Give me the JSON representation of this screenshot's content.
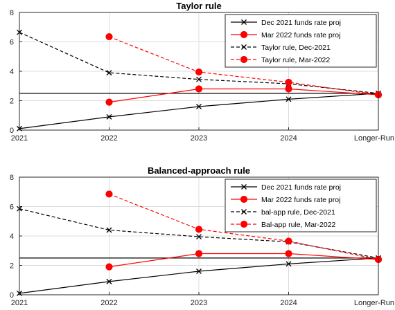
{
  "chart_data": [
    {
      "type": "line",
      "title": "Taylor rule",
      "categories": [
        "2021",
        "2022",
        "2023",
        "2024",
        "Longer-Run"
      ],
      "ylim": [
        0,
        8
      ],
      "yticks": [
        0,
        2,
        4,
        6,
        8
      ],
      "grid": true,
      "legend_position": "top-right",
      "reference_line": 2.5,
      "series": [
        {
          "name": "Dec 2021 funds rate proj",
          "color": "#000000",
          "style": "solid",
          "marker": "x",
          "values": [
            0.1,
            0.9,
            1.6,
            2.1,
            2.5
          ]
        },
        {
          "name": "Mar 2022 funds rate proj",
          "color": "#ff0000",
          "style": "solid",
          "marker": "o",
          "values": [
            null,
            1.9,
            2.8,
            2.8,
            2.4
          ]
        },
        {
          "name": "Taylor rule, Dec-2021",
          "color": "#000000",
          "style": "dashed",
          "marker": "x",
          "values": [
            6.65,
            3.9,
            3.45,
            3.15,
            2.5
          ]
        },
        {
          "name": "Taylor rule, Mar-2022",
          "color": "#ff0000",
          "style": "dashed",
          "marker": "o",
          "values": [
            null,
            6.35,
            3.95,
            3.25,
            2.4
          ]
        }
      ]
    },
    {
      "type": "line",
      "title": "Balanced-approach rule",
      "categories": [
        "2021",
        "2022",
        "2023",
        "2024",
        "Longer-Run"
      ],
      "ylim": [
        0,
        8
      ],
      "yticks": [
        0,
        2,
        4,
        6,
        8
      ],
      "grid": true,
      "legend_position": "top-right",
      "reference_line": 2.5,
      "series": [
        {
          "name": "Dec 2021 funds rate proj",
          "color": "#000000",
          "style": "solid",
          "marker": "x",
          "values": [
            0.1,
            0.9,
            1.6,
            2.1,
            2.5
          ]
        },
        {
          "name": "Mar 2022 funds rate proj",
          "color": "#ff0000",
          "style": "solid",
          "marker": "o",
          "values": [
            null,
            1.9,
            2.8,
            2.8,
            2.4
          ]
        },
        {
          "name": "bal-app rule, Dec-2021",
          "color": "#000000",
          "style": "dashed",
          "marker": "x",
          "values": [
            5.85,
            4.4,
            3.95,
            3.6,
            2.5
          ]
        },
        {
          "name": "Bal-app rule, Mar-2022",
          "color": "#ff0000",
          "style": "dashed",
          "marker": "o",
          "values": [
            null,
            6.85,
            4.45,
            3.65,
            2.4
          ]
        }
      ]
    }
  ]
}
